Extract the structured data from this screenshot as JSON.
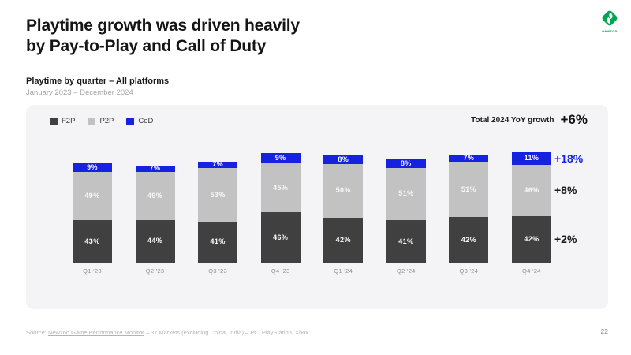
{
  "slide": {
    "title_line1": "Playtime growth was driven heavily",
    "title_line2": "by Pay-to-Play and Call of Duty",
    "subtitle": "Playtime by quarter – All platforms",
    "date_range": "January 2023 – December 2024",
    "logo_text": "newzoo",
    "source_prefix": "Source: ",
    "source_link": "Newzoo Game Performance Monitor",
    "source_suffix": " – 37 Markets (excluding China, India) – PC, PlayStation, Xbox",
    "page_number": "22"
  },
  "growth": {
    "label": "Total 2024 YoY growth",
    "value": "+6%"
  },
  "chart_data": {
    "type": "bar",
    "stacked": true,
    "title": "Playtime by quarter – All platforms",
    "categories": [
      "Q1 '23",
      "Q2 '23",
      "Q3 '23",
      "Q4 '23",
      "Q1 '24",
      "Q2 '24",
      "Q3 '24",
      "Q4 '24"
    ],
    "series": [
      {
        "name": "F2P",
        "color": "#404040",
        "values": [
          43,
          44,
          41,
          46,
          42,
          41,
          42,
          42
        ]
      },
      {
        "name": "P2P",
        "color": "#c2c2c2",
        "values": [
          49,
          49,
          53,
          45,
          50,
          51,
          51,
          46
        ]
      },
      {
        "name": "CoD",
        "color": "#1522e0",
        "values": [
          9,
          7,
          7,
          9,
          8,
          8,
          7,
          11
        ]
      }
    ],
    "value_suffix": "%",
    "totals_index": [
      100,
      98,
      102,
      110,
      108,
      104,
      109,
      111
    ],
    "legend_position": "top-left",
    "grid": false,
    "annotations": [
      {
        "label": "+18%",
        "series": "CoD",
        "color": "#1522e0"
      },
      {
        "label": "+8%",
        "series": "P2P",
        "color": "#1a1a1a"
      },
      {
        "label": "+2%",
        "series": "F2P",
        "color": "#1a1a1a"
      }
    ]
  }
}
